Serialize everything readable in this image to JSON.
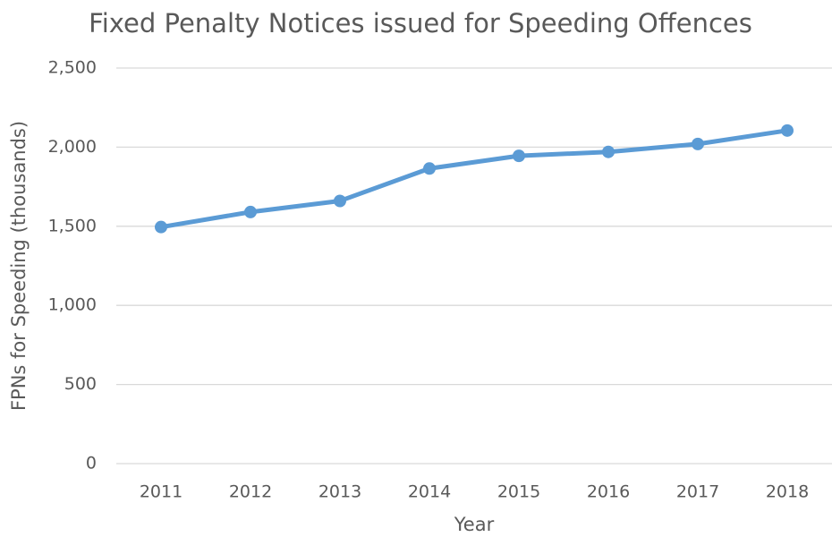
{
  "chart_data": {
    "type": "line",
    "title": "Fixed Penalty Notices issued for Speeding Offences",
    "x_label": "Year",
    "y_label": "FPNs for Speeding (thousands)",
    "categories": [
      "2011",
      "2012",
      "2013",
      "2014",
      "2015",
      "2016",
      "2017",
      "2018"
    ],
    "series": [
      {
        "name": "FPNs for Speeding",
        "color": "#5b9bd5",
        "values": [
          1495,
          1590,
          1660,
          1865,
          1945,
          1970,
          2020,
          2105
        ]
      }
    ],
    "ylim": [
      0,
      2500
    ],
    "yticks": [
      0,
      500,
      {
        "value": 1000,
        "label": "1,000"
      },
      {
        "value": 1500,
        "label": "1,500"
      },
      {
        "value": 2000,
        "label": "2,000"
      },
      {
        "value": 2500,
        "label": "2,500"
      }
    ],
    "grid": true
  }
}
